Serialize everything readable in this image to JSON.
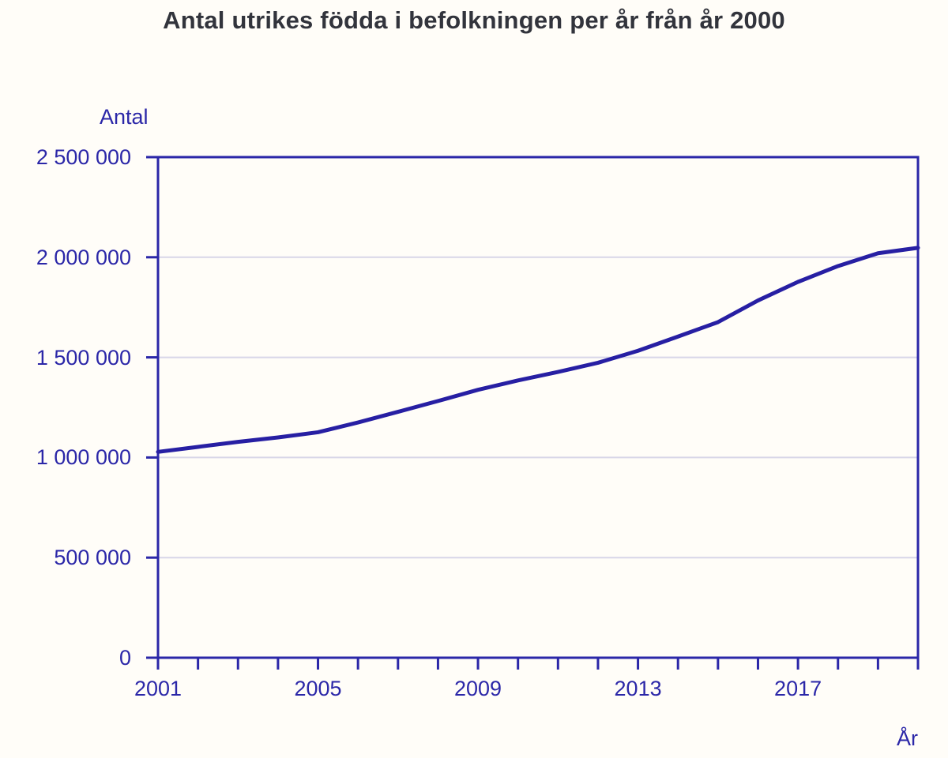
{
  "chart_data": {
    "type": "line",
    "title": "Antal utrikes födda i befolkningen per år från år 2000",
    "ylabel": "Antal",
    "xlabel": "År",
    "x": [
      2001,
      2002,
      2003,
      2004,
      2005,
      2006,
      2007,
      2008,
      2009,
      2010,
      2011,
      2012,
      2013,
      2014,
      2015,
      2016,
      2017,
      2018,
      2019,
      2020
    ],
    "values": [
      1028000,
      1053000,
      1078000,
      1100000,
      1126000,
      1175000,
      1228000,
      1282000,
      1338000,
      1385000,
      1427000,
      1473000,
      1533000,
      1604000,
      1676000,
      1784000,
      1877000,
      1956000,
      2020000,
      2047000
    ],
    "ylim": [
      0,
      2500000
    ],
    "yticks": [
      0,
      500000,
      1000000,
      1500000,
      2000000,
      2500000
    ],
    "ytick_labels": [
      "0",
      "500 000",
      "1 000 000",
      "1 500 000",
      "2 000 000",
      "2 500 000"
    ],
    "xticks_labeled_years": [
      2001,
      2005,
      2009,
      2013,
      2017
    ],
    "xtick_labels": [
      "2001",
      "2005",
      "2009",
      "2013",
      "2017"
    ],
    "grid": "horizontal",
    "legend": "none",
    "colors": {
      "line": "#271fa3",
      "axis": "#2b27a8",
      "tick_text": "#2b27a8",
      "grid": "#d8d6e8",
      "title_text": "#32343c",
      "page_bg": "#fffdf8",
      "plot_bg": "#fffdf8"
    }
  }
}
